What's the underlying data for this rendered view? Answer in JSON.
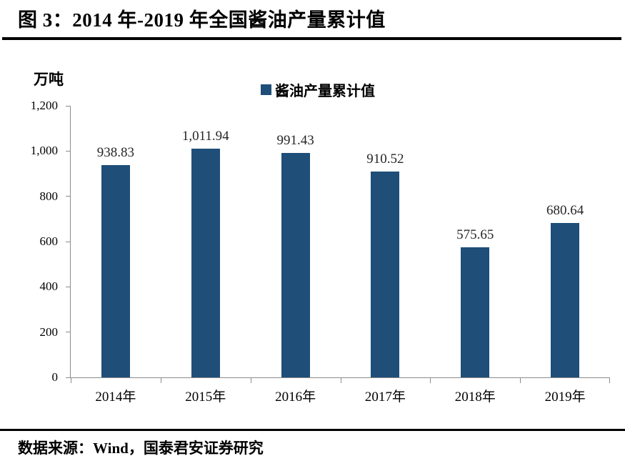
{
  "figure": {
    "title": "图 3：2014 年-2019 年全国酱油产量累计值",
    "source": "数据来源：Wind，国泰君安证券研究"
  },
  "chart_data": {
    "type": "bar",
    "title": "图 3：2014 年-2019 年全国酱油产量累计值",
    "unit_label": "万吨",
    "legend": [
      {
        "name": "酱油产量累计值",
        "color": "#1F4E79"
      }
    ],
    "legend_position": "top-center",
    "categories": [
      "2014年",
      "2015年",
      "2016年",
      "2017年",
      "2018年",
      "2019年"
    ],
    "series": [
      {
        "name": "酱油产量累计值",
        "values": [
          938.83,
          1011.94,
          991.43,
          910.52,
          575.65,
          680.64
        ]
      }
    ],
    "value_labels": [
      "938.83",
      "1,011.94",
      "991.43",
      "910.52",
      "575.65",
      "680.64"
    ],
    "xlabel": "",
    "ylabel": "万吨",
    "ylim": [
      0,
      1200
    ],
    "yticks": [
      0,
      200,
      400,
      600,
      800,
      1000,
      1200
    ],
    "ytick_labels": [
      "0",
      "200",
      "400",
      "600",
      "800",
      "1,000",
      "1,200"
    ],
    "grid": false,
    "bar_color": "#1F4E79",
    "axis_color": "#8C8C8C",
    "value_label_color": "#262626",
    "source": "数据来源：Wind，国泰君安证券研究"
  }
}
